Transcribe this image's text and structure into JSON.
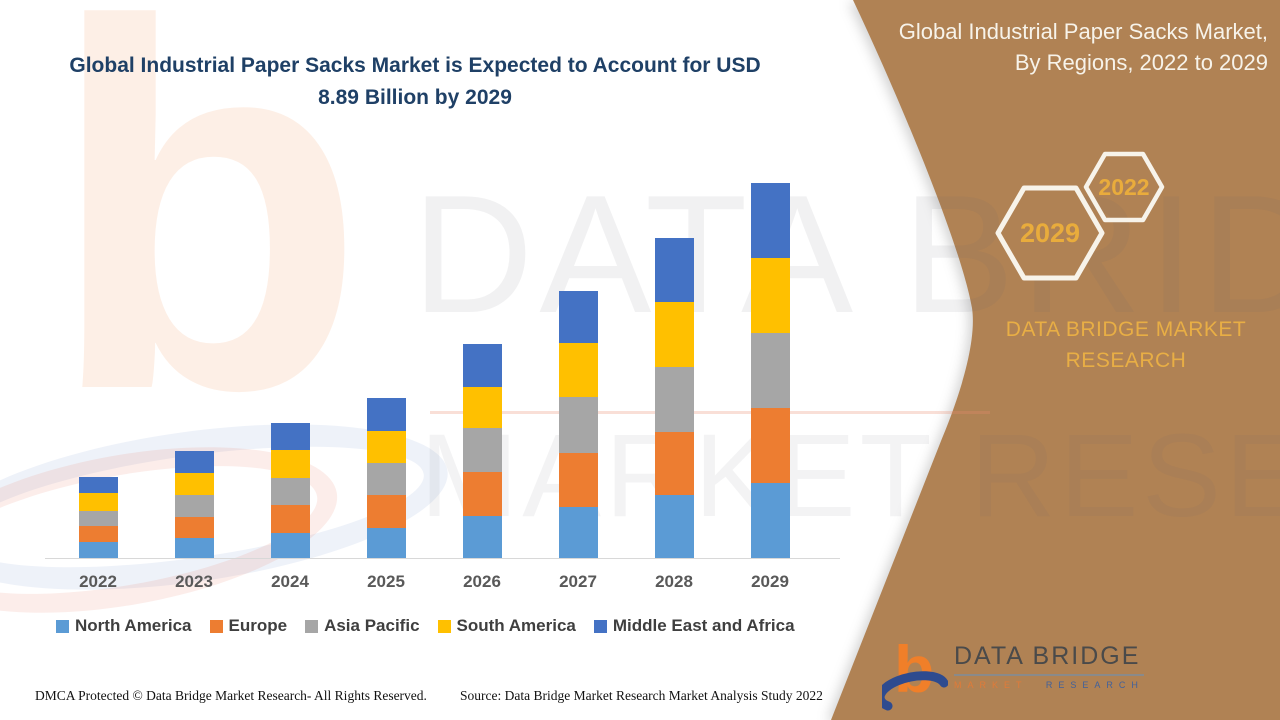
{
  "title": "Global Industrial Paper Sacks Market is Expected to Account for USD 8.89 Billion by 2029",
  "panel_heading": "Global Industrial Paper Sacks Market, By Regions, 2022 to 2029",
  "brand_text": "DATA BRIDGE MARKET RESEARCH",
  "hexagons": {
    "front_year": "2029",
    "back_year": "2022"
  },
  "footer": {
    "dmca": "DMCA Protected © Data Bridge Market Research- All Rights Reserved.",
    "source": "Source: Data Bridge Market Research Market Analysis Study 2022"
  },
  "logo": {
    "brand": "DATA BRIDGE",
    "tagline_left": "MARKET",
    "tagline_right": "RESEARCH"
  },
  "watermark": {
    "line1": "DATA BRIDGE",
    "line2": "MARKET RESEARCH",
    "letter": "b"
  },
  "colors": {
    "panel_brown": "#B08254",
    "title_navy": "#1F4066",
    "gold": "#E8AE45",
    "hex_stroke": "#F7F3EA"
  },
  "chart_data": {
    "type": "bar",
    "subtype": "stacked",
    "unit": "USD Billion",
    "categories": [
      "2022",
      "2023",
      "2024",
      "2025",
      "2026",
      "2027",
      "2028",
      "2029"
    ],
    "series": [
      {
        "name": "North America",
        "color": "#5B9BD5",
        "values": [
          0.4,
          0.5,
          0.61,
          0.73,
          1.02,
          1.23,
          1.51,
          1.8
        ]
      },
      {
        "name": "Europe",
        "color": "#ED7D31",
        "values": [
          0.38,
          0.5,
          0.66,
          0.78,
          1.04,
          1.28,
          1.49,
          1.77
        ]
      },
      {
        "name": "Asia Pacific",
        "color": "#A6A6A6",
        "values": [
          0.35,
          0.51,
          0.64,
          0.76,
          1.04,
          1.32,
          1.54,
          1.78
        ]
      },
      {
        "name": "South America",
        "color": "#FFC000",
        "values": [
          0.43,
          0.51,
          0.66,
          0.76,
          0.97,
          1.28,
          1.54,
          1.77
        ]
      },
      {
        "name": "Middle East and Africa",
        "color": "#4472C4",
        "values": [
          0.38,
          0.51,
          0.64,
          0.78,
          1.02,
          1.23,
          1.51,
          1.77
        ]
      }
    ],
    "totals_estimated": [
      1.94,
      2.53,
      3.21,
      3.81,
      5.09,
      6.34,
      7.59,
      8.89
    ],
    "ylim": [
      0,
      9.5
    ],
    "grid": false,
    "legend_position": "bottom",
    "xlabel": "",
    "ylabel": ""
  }
}
